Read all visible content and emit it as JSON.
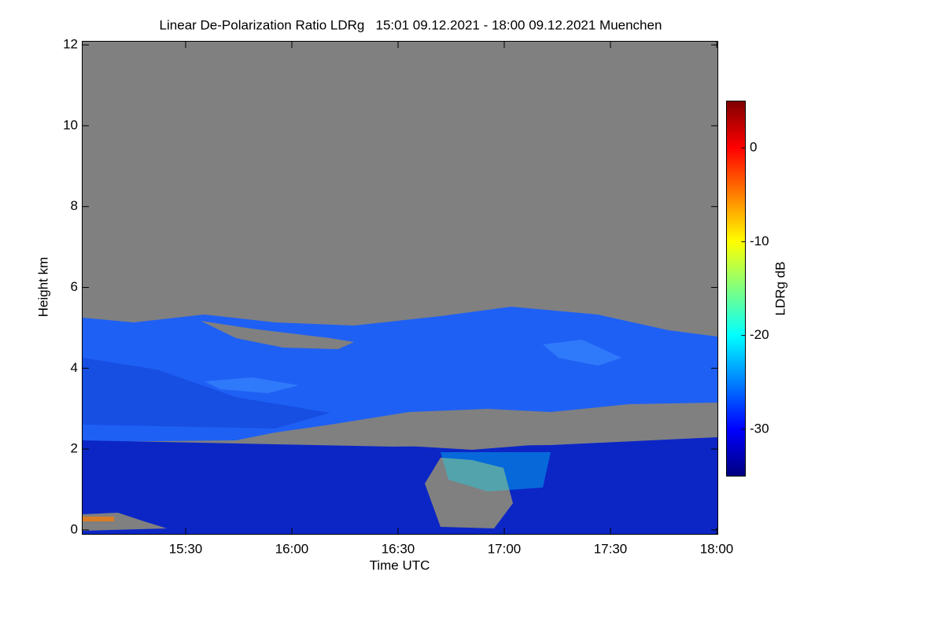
{
  "chart_data": {
    "type": "heatmap",
    "title": "Linear De-Polarization Ratio LDRg   15:01 09.12.2021 - 18:00 09.12.2021 Muenchen",
    "xlabel": "Time UTC",
    "ylabel": "Height km",
    "colorbar_label": "LDRg dB",
    "xlim": [
      901,
      1080
    ],
    "xticks": [
      {
        "value": 930,
        "label": "15:30"
      },
      {
        "value": 960,
        "label": "16:00"
      },
      {
        "value": 990,
        "label": "16:30"
      },
      {
        "value": 1020,
        "label": "17:00"
      },
      {
        "value": 1050,
        "label": "17:30"
      },
      {
        "value": 1080,
        "label": "18:00"
      }
    ],
    "ylim": [
      -0.1,
      12.1
    ],
    "yticks": [
      0,
      2,
      4,
      6,
      8,
      10,
      12
    ],
    "clim": [
      -35,
      5
    ],
    "cticks": [
      0,
      -10,
      -20,
      -30
    ],
    "colormap": "jet"
  }
}
